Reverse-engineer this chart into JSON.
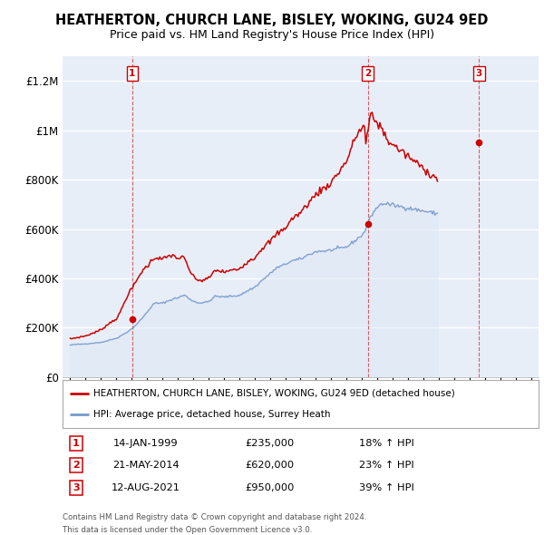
{
  "title": "HEATHERTON, CHURCH LANE, BISLEY, WOKING, GU24 9ED",
  "subtitle": "Price paid vs. HM Land Registry's House Price Index (HPI)",
  "title_fontsize": 11,
  "subtitle_fontsize": 9.5,
  "red_line_label": "HEATHERTON, CHURCH LANE, BISLEY, WOKING, GU24 9ED (detached house)",
  "blue_line_label": "HPI: Average price, detached house, Surrey Heath",
  "sales": [
    {
      "num": 1,
      "date": "14-JAN-1999",
      "price": 235000,
      "hpi_pct": "18% ↑ HPI",
      "x_year": 1999.04
    },
    {
      "num": 2,
      "date": "21-MAY-2014",
      "price": 620000,
      "hpi_pct": "23% ↑ HPI",
      "x_year": 2014.38
    },
    {
      "num": 3,
      "date": "12-AUG-2021",
      "price": 950000,
      "hpi_pct": "39% ↑ HPI",
      "x_year": 2021.62
    }
  ],
  "footer1": "Contains HM Land Registry data © Crown copyright and database right 2024.",
  "footer2": "This data is licensed under the Open Government Licence v3.0.",
  "red_color": "#cc0000",
  "blue_color": "#7799cc",
  "blue_fill_color": "#dde8f5",
  "ylim": [
    0,
    1300000
  ],
  "yticks": [
    0,
    200000,
    400000,
    600000,
    800000,
    1000000,
    1200000
  ],
  "ytick_labels": [
    "£0",
    "£200K",
    "£400K",
    "£600K",
    "£800K",
    "£1M",
    "£1.2M"
  ],
  "xmin": 1994.5,
  "xmax": 2025.5,
  "background_color": "#e8eef8",
  "hpi_monthly": [
    130000,
    131000,
    131500,
    132000,
    132500,
    133000,
    133000,
    133200,
    133500,
    133800,
    134000,
    134500,
    135000,
    135500,
    136000,
    136500,
    137000,
    137500,
    138000,
    138500,
    139000,
    139500,
    140000,
    140500,
    141000,
    142000,
    143000,
    144500,
    146000,
    147500,
    149000,
    150500,
    152000,
    153500,
    155000,
    156500,
    158000,
    160000,
    163000,
    166000,
    169000,
    172000,
    175000,
    178000,
    181500,
    185000,
    188500,
    192000,
    196000,
    200000,
    205000,
    210000,
    215000,
    220000,
    226000,
    232000,
    238000,
    244000,
    250000,
    256000,
    263000,
    270000,
    277000,
    283000,
    289000,
    295000,
    299000,
    300500,
    300000,
    299500,
    299000,
    299500,
    300000,
    302000,
    304000,
    306000,
    308000,
    310000,
    312000,
    314000,
    316000,
    318000,
    319000,
    320000,
    322000,
    324000,
    326000,
    328000,
    330000,
    332000,
    330000,
    326000,
    322000,
    318000,
    315000,
    312000,
    308000,
    306000,
    304000,
    303000,
    302000,
    301500,
    301000,
    301500,
    302000,
    303000,
    303500,
    304000,
    306000,
    310000,
    314000,
    318000,
    322000,
    326000,
    328000,
    328000,
    327000,
    326000,
    325500,
    325000,
    325000,
    325500,
    326000,
    326500,
    327000,
    327500,
    328000,
    328500,
    329000,
    329500,
    330000,
    330500,
    332000,
    334000,
    336000,
    339000,
    342000,
    345000,
    348000,
    351000,
    354000,
    357000,
    359000,
    361000,
    364000,
    368000,
    373000,
    378000,
    383000,
    388000,
    393000,
    397000,
    401000,
    406000,
    410000,
    414000,
    418000,
    423000,
    428000,
    433000,
    437000,
    441000,
    444000,
    446000,
    448000,
    450000,
    452000,
    454000,
    457000,
    460000,
    463000,
    466000,
    468000,
    470000,
    472000,
    473000,
    474000,
    475000,
    476000,
    477000,
    479000,
    481000,
    484000,
    487000,
    490000,
    493000,
    496000,
    498000,
    500000,
    502000,
    504000,
    506000,
    508000,
    509000,
    510000,
    510500,
    511000,
    511000,
    511000,
    511000,
    511500,
    512000,
    513000,
    514000,
    515000,
    516000,
    517000,
    518000,
    519000,
    520000,
    521000,
    522000,
    523000,
    524000,
    525000,
    526000,
    528000,
    531000,
    535000,
    539000,
    543000,
    547000,
    551000,
    555000,
    559000,
    563000,
    567000,
    571000,
    576000,
    582000,
    590000,
    600000,
    612000,
    625000,
    638000,
    651000,
    662000,
    670000,
    676000,
    682000,
    688000,
    693000,
    697000,
    700000,
    702000,
    703000,
    703000,
    702000,
    701000,
    700000,
    699000,
    698000,
    697000,
    696000,
    695000,
    694000,
    693000,
    692000,
    691000,
    690000,
    689000,
    688000,
    687000,
    686000,
    685000,
    684000,
    683000,
    682000,
    681000,
    680000,
    679000,
    678000,
    677000,
    676000,
    675000,
    674000,
    673000,
    672000,
    671000,
    670000,
    669000,
    668000,
    667000,
    666000,
    665000,
    664000,
    663000,
    662000
  ],
  "red_monthly": [
    155000,
    156000,
    157000,
    158000,
    159000,
    160000,
    161000,
    162000,
    163000,
    164000,
    165000,
    166000,
    167000,
    169000,
    171000,
    173000,
    175000,
    177000,
    179000,
    181000,
    183000,
    185000,
    187000,
    190000,
    193000,
    196000,
    200000,
    204000,
    208000,
    212000,
    216000,
    220000,
    224000,
    228000,
    231000,
    234000,
    235000,
    240000,
    252000,
    264000,
    275000,
    287000,
    298000,
    311000,
    323000,
    335000,
    342000,
    350000,
    357000,
    366000,
    374000,
    382000,
    392000,
    401000,
    411000,
    420000,
    429000,
    435000,
    440000,
    444000,
    448000,
    455000,
    462000,
    468000,
    474000,
    480000,
    484000,
    486000,
    484000,
    482000,
    480000,
    479000,
    478000,
    480000,
    482000,
    484000,
    487000,
    490000,
    493000,
    494000,
    493000,
    490000,
    487000,
    485000,
    482000,
    482000,
    483000,
    484000,
    483000,
    482000,
    472000,
    460000,
    447000,
    436000,
    426000,
    417000,
    407000,
    403000,
    399000,
    397000,
    394000,
    392000,
    391000,
    392000,
    393000,
    395000,
    396000,
    397000,
    400000,
    406000,
    412000,
    418000,
    424000,
    430000,
    434000,
    433000,
    431000,
    429000,
    428000,
    427000,
    426000,
    427000,
    428000,
    429000,
    430000,
    431000,
    432000,
    433000,
    434000,
    435000,
    436000,
    437000,
    440000,
    444000,
    448000,
    453000,
    458000,
    462000,
    466000,
    469000,
    472000,
    476000,
    478000,
    480000,
    484000,
    490000,
    497000,
    504000,
    511000,
    517000,
    522000,
    527000,
    531000,
    535000,
    540000,
    544000,
    548000,
    554000,
    560000,
    566000,
    572000,
    578000,
    582000,
    585000,
    589000,
    592000,
    596000,
    600000,
    605000,
    612000,
    619000,
    626000,
    633000,
    639000,
    644000,
    648000,
    651000,
    655000,
    659000,
    662000,
    667000,
    673000,
    679000,
    686000,
    692000,
    699000,
    705000,
    710000,
    716000,
    722000,
    728000,
    734000,
    740000,
    745000,
    750000,
    754000,
    758000,
    761000,
    764000,
    767000,
    771000,
    775000,
    779000,
    784000,
    790000,
    797000,
    804000,
    811000,
    818000,
    825000,
    832000,
    839000,
    847000,
    854000,
    862000,
    869000,
    877000,
    888000,
    901000,
    916000,
    930000,
    945000,
    959000,
    972000,
    982000,
    990000,
    997000,
    1003000,
    1008000,
    1013000,
    1017000,
    950000,
    975000,
    1005000,
    1045000,
    1058000,
    1060000,
    1050000,
    1040000,
    1035000,
    1030000,
    1025000,
    1018000,
    1010000,
    1000000,
    990000,
    980000,
    970000,
    962000,
    955000,
    950000,
    946000,
    942000,
    938000,
    934000,
    930000,
    926000,
    922000,
    918000,
    914000,
    910000,
    906000,
    902000,
    898000,
    894000,
    890000,
    886000,
    882000,
    878000,
    874000,
    870000,
    866000,
    862000,
    858000,
    854000,
    850000,
    846000,
    842000,
    838000,
    834000,
    830000,
    826000,
    822000,
    818000,
    814000,
    810000,
    806000,
    802000
  ]
}
